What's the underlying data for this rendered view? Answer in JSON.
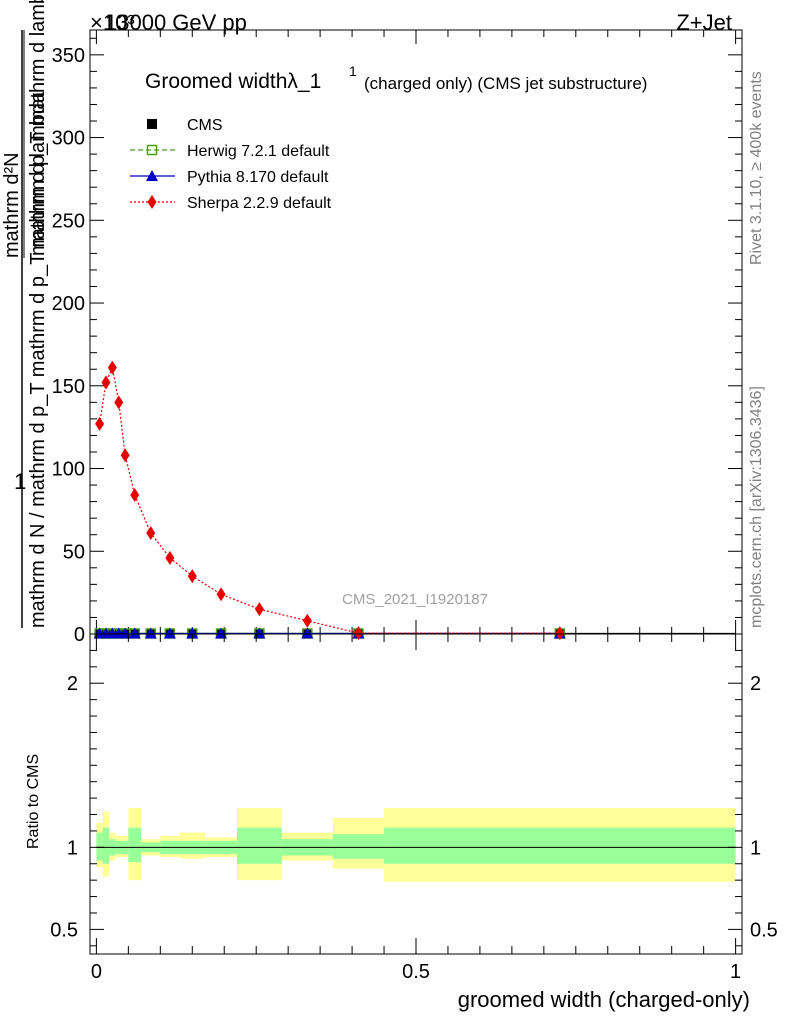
{
  "header": {
    "left_title": "13000 GeV pp",
    "right_title": "Z+Jet",
    "exponent_label": "×10³"
  },
  "side_labels": {
    "rivet": "Rivet 3.1.10, ≥ 400k events",
    "mcplots": "mcplots.cern.ch [arXiv:1306.3436]"
  },
  "chart_data": [
    {
      "type": "line",
      "title": "Groomed widthλ_1",
      "title_superscript": "1",
      "title_suffix": "(charged only) (CMS jet substructure)",
      "ylabel": {
        "numerator": "1",
        "denominator": "mathrm d N / mathrm d p_T mathrm d p_T mathrm d lambda",
        "upper_numerator": "mathrm d²N",
        "upper_denominator": "mathrm d p_T mathrm d lambda",
        "subscript": "T"
      },
      "ylim": [
        0,
        365
      ],
      "y_ticks": [
        0,
        50,
        100,
        150,
        200,
        250,
        300,
        350
      ],
      "xlim": [
        -0.01,
        1.01
      ],
      "watermark": "CMS_2021_I1920187",
      "legend_position": "top-left",
      "legend": [
        {
          "name": "CMS",
          "marker": "square",
          "color": "#000000",
          "line": "none"
        },
        {
          "name": "Herwig 7.2.1 default",
          "marker": "open-square",
          "color": "#4b9e18",
          "line": "dashed"
        },
        {
          "name": "Pythia 8.170 default",
          "marker": "triangle",
          "color": "#0000cc",
          "line": "solid"
        },
        {
          "name": "Sherpa 2.2.9 default",
          "marker": "diamond",
          "color": "#e60000",
          "line": "dotted"
        }
      ],
      "bins": [
        {
          "lo": 0.0,
          "hi": 0.01
        },
        {
          "lo": 0.01,
          "hi": 0.02
        },
        {
          "lo": 0.02,
          "hi": 0.03
        },
        {
          "lo": 0.03,
          "hi": 0.04
        },
        {
          "lo": 0.04,
          "hi": 0.05
        },
        {
          "lo": 0.05,
          "hi": 0.07
        },
        {
          "lo": 0.07,
          "hi": 0.1
        },
        {
          "lo": 0.1,
          "hi": 0.13
        },
        {
          "lo": 0.13,
          "hi": 0.17
        },
        {
          "lo": 0.17,
          "hi": 0.22
        },
        {
          "lo": 0.22,
          "hi": 0.29
        },
        {
          "lo": 0.29,
          "hi": 0.37
        },
        {
          "lo": 0.37,
          "hi": 0.45
        },
        {
          "lo": 0.45,
          "hi": 1.0
        }
      ],
      "series": [
        {
          "name": "CMS",
          "x": [
            0.005,
            0.015,
            0.025,
            0.035,
            0.045,
            0.06,
            0.085,
            0.115,
            0.15,
            0.195,
            0.255,
            0.33,
            0.41,
            0.725
          ],
          "values": [
            0.3,
            0.3,
            0.3,
            0.3,
            0.3,
            0.3,
            0.3,
            0.3,
            0.3,
            0.3,
            0.3,
            0.3,
            0.3,
            0.3
          ]
        },
        {
          "name": "Herwig 7.2.1 default",
          "x": [
            0.005,
            0.015,
            0.025,
            0.035,
            0.045,
            0.06,
            0.085,
            0.115,
            0.15,
            0.195,
            0.255,
            0.33,
            0.41,
            0.725
          ],
          "values": [
            0.3,
            0.3,
            0.3,
            0.3,
            0.3,
            0.3,
            0.3,
            0.3,
            0.3,
            0.3,
            0.3,
            0.3,
            0.3,
            0.3
          ]
        },
        {
          "name": "Pythia 8.170 default",
          "x": [
            0.005,
            0.015,
            0.025,
            0.035,
            0.045,
            0.06,
            0.085,
            0.115,
            0.15,
            0.195,
            0.255,
            0.33,
            0.41,
            0.725
          ],
          "values": [
            0.3,
            0.3,
            0.3,
            0.3,
            0.3,
            0.3,
            0.3,
            0.3,
            0.3,
            0.3,
            0.3,
            0.3,
            0.3,
            0.3
          ]
        },
        {
          "name": "Sherpa 2.2.9 default",
          "x": [
            0.005,
            0.015,
            0.025,
            0.035,
            0.045,
            0.06,
            0.085,
            0.115,
            0.15,
            0.195,
            0.255,
            0.33,
            0.41,
            0.725
          ],
          "values": [
            127,
            152,
            161,
            140,
            108,
            84,
            61,
            46,
            35,
            24,
            15,
            8,
            0.5,
            0.5
          ]
        }
      ]
    },
    {
      "type": "area",
      "ylabel": "Ratio to CMS",
      "xlabel": "groomed width (charged-only)",
      "ylim": [
        0.35,
        2.3
      ],
      "y_ticks": [
        0.5,
        1,
        2
      ],
      "y_tick_labels": [
        "0.5",
        "1",
        "2"
      ],
      "x_ticks": [
        0,
        0.5,
        1
      ],
      "x_tick_labels": [
        "0",
        "0.5",
        "1"
      ],
      "reference_line": 1,
      "band_colors": {
        "stat": "#99ff99",
        "total": "#ffff99"
      },
      "bands": [
        {
          "lo": 0.0,
          "hi": 0.01,
          "stat": [
            0.92,
            1.09
          ],
          "total": [
            0.88,
            1.15
          ]
        },
        {
          "lo": 0.01,
          "hi": 0.02,
          "stat": [
            0.9,
            1.12
          ],
          "total": [
            0.82,
            1.22
          ]
        },
        {
          "lo": 0.02,
          "hi": 0.03,
          "stat": [
            0.95,
            1.05
          ],
          "total": [
            0.92,
            1.09
          ]
        },
        {
          "lo": 0.03,
          "hi": 0.05,
          "stat": [
            0.96,
            1.04
          ],
          "total": [
            0.94,
            1.07
          ]
        },
        {
          "lo": 0.05,
          "hi": 0.07,
          "stat": [
            0.91,
            1.12
          ],
          "total": [
            0.8,
            1.24
          ]
        },
        {
          "lo": 0.07,
          "hi": 0.1,
          "stat": [
            0.97,
            1.03
          ],
          "total": [
            0.95,
            1.05
          ]
        },
        {
          "lo": 0.1,
          "hi": 0.13,
          "stat": [
            0.96,
            1.04
          ],
          "total": [
            0.94,
            1.07
          ]
        },
        {
          "lo": 0.13,
          "hi": 0.17,
          "stat": [
            0.96,
            1.04
          ],
          "total": [
            0.93,
            1.09
          ]
        },
        {
          "lo": 0.17,
          "hi": 0.22,
          "stat": [
            0.96,
            1.04
          ],
          "total": [
            0.94,
            1.06
          ]
        },
        {
          "lo": 0.22,
          "hi": 0.29,
          "stat": [
            0.9,
            1.12
          ],
          "total": [
            0.8,
            1.24
          ]
        },
        {
          "lo": 0.29,
          "hi": 0.37,
          "stat": [
            0.95,
            1.05
          ],
          "total": [
            0.92,
            1.09
          ]
        },
        {
          "lo": 0.37,
          "hi": 0.45,
          "stat": [
            0.93,
            1.08
          ],
          "total": [
            0.87,
            1.18
          ]
        },
        {
          "lo": 0.45,
          "hi": 1.0,
          "stat": [
            0.9,
            1.12
          ],
          "total": [
            0.79,
            1.24
          ]
        }
      ]
    }
  ]
}
